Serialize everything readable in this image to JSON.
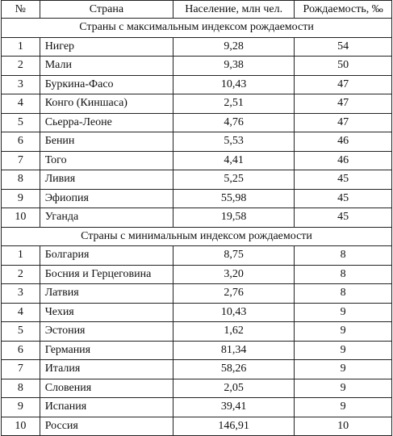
{
  "header": {
    "num": "№",
    "country": "Страна",
    "population": "Население, млн чел.",
    "birthrate": "Рождаемость, ‰"
  },
  "sections": [
    {
      "title": "Страны с максимальным индексом рождаемости",
      "rows": [
        {
          "num": "1",
          "country": "Нигер",
          "population": "9,28",
          "birthrate": "54"
        },
        {
          "num": "2",
          "country": "Мали",
          "population": "9,38",
          "birthrate": "50"
        },
        {
          "num": "3",
          "country": "Буркина-Фасо",
          "population": "10,43",
          "birthrate": "47"
        },
        {
          "num": "4",
          "country": "Конго (Киншаса)",
          "population": "2,51",
          "birthrate": "47"
        },
        {
          "num": "5",
          "country": "Сьерра-Леоне",
          "population": "4,76",
          "birthrate": "47"
        },
        {
          "num": "6",
          "country": "Бенин",
          "population": "5,53",
          "birthrate": "46"
        },
        {
          "num": "7",
          "country": "Того",
          "population": "4,41",
          "birthrate": "46"
        },
        {
          "num": "8",
          "country": "Ливия",
          "population": "5,25",
          "birthrate": "45"
        },
        {
          "num": "9",
          "country": "Эфиопия",
          "population": "55,98",
          "birthrate": "45"
        },
        {
          "num": "10",
          "country": "Уганда",
          "population": "19,58",
          "birthrate": "45"
        }
      ]
    },
    {
      "title": "Страны с минимальным индексом рождаемости",
      "rows": [
        {
          "num": "1",
          "country": "Болгария",
          "population": "8,75",
          "birthrate": "8"
        },
        {
          "num": "2",
          "country": "Босния и Герцеговина",
          "population": "3,20",
          "birthrate": "8"
        },
        {
          "num": "3",
          "country": "Латвия",
          "population": "2,76",
          "birthrate": "8"
        },
        {
          "num": "4",
          "country": "Чехия",
          "population": "10,43",
          "birthrate": "9"
        },
        {
          "num": "5",
          "country": "Эстония",
          "population": "1,62",
          "birthrate": "9"
        },
        {
          "num": "6",
          "country": "Германия",
          "population": "81,34",
          "birthrate": "9"
        },
        {
          "num": "7",
          "country": "Италия",
          "population": "58,26",
          "birthrate": "9"
        },
        {
          "num": "8",
          "country": "Словения",
          "population": "2,05",
          "birthrate": "9"
        },
        {
          "num": "9",
          "country": "Испания",
          "population": "39,41",
          "birthrate": "9"
        },
        {
          "num": "10",
          "country": "Россия",
          "population": "146,91",
          "birthrate": "10"
        }
      ]
    }
  ]
}
